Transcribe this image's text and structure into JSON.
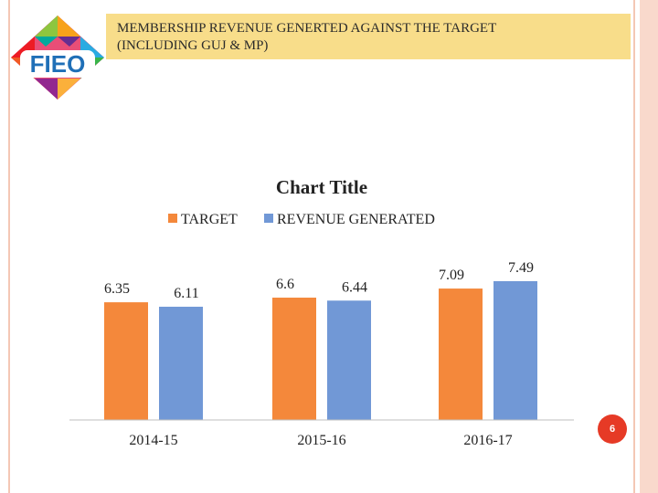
{
  "slide": {
    "title_line1": "MEMBERSHIP REVENUE GENERTED AGAINST THE TARGET",
    "title_line2": "(INCLUDING GUJ & MP)",
    "page_number": "6"
  },
  "logo": {
    "text": "FIEO"
  },
  "colors": {
    "target": "#f4883b",
    "revenue": "#7198d6",
    "title_bar": "#f8dd8a",
    "page_badge": "#e63a26"
  },
  "chart_data": {
    "type": "bar",
    "title": "Chart Title",
    "categories": [
      "2014-15",
      "2015-16",
      "2016-17"
    ],
    "series": [
      {
        "name": "TARGET",
        "values": [
          6.35,
          6.6,
          7.09
        ],
        "labels": [
          "6.35",
          "6.6",
          "7.09"
        ]
      },
      {
        "name": "REVENUE GENERATED",
        "values": [
          6.11,
          6.44,
          7.49
        ],
        "labels": [
          "6.11",
          "6.44",
          "7.49"
        ]
      }
    ],
    "legend_position": "top",
    "grid": false,
    "ylim": [
      0,
      8
    ]
  }
}
